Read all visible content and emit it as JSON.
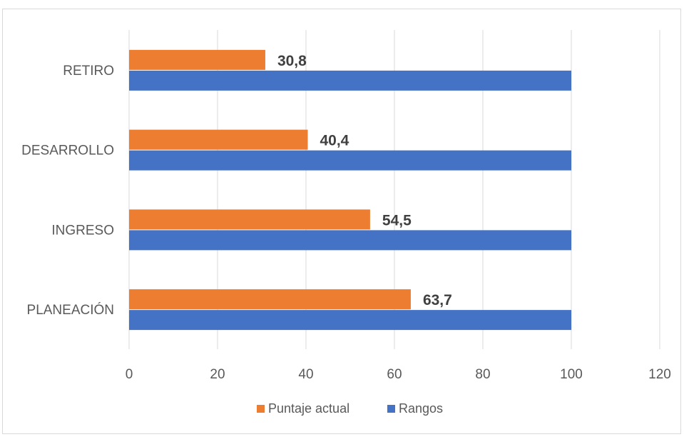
{
  "chart_data": {
    "type": "bar",
    "orientation": "horizontal",
    "categories": [
      "RETIRO",
      "DESARROLLO",
      "INGRESO",
      "PLANEACIÓN"
    ],
    "series": [
      {
        "name": "Puntaje actual",
        "color": "#ED7D31",
        "values": [
          30.8,
          40.4,
          54.5,
          63.7
        ],
        "data_labels": [
          "30,8",
          "40,4",
          "54,5",
          "63,7"
        ]
      },
      {
        "name": "Rangos",
        "color": "#4472C4",
        "values": [
          100,
          100,
          100,
          100
        ]
      }
    ],
    "xlim": [
      0,
      120
    ],
    "x_ticks": [
      0,
      20,
      40,
      60,
      80,
      100,
      120
    ],
    "x_tick_labels": [
      "0",
      "20",
      "40",
      "60",
      "80",
      "100",
      "120"
    ],
    "grid": "vertical",
    "legend_position": "bottom",
    "title": "",
    "xlabel": "",
    "ylabel": ""
  }
}
